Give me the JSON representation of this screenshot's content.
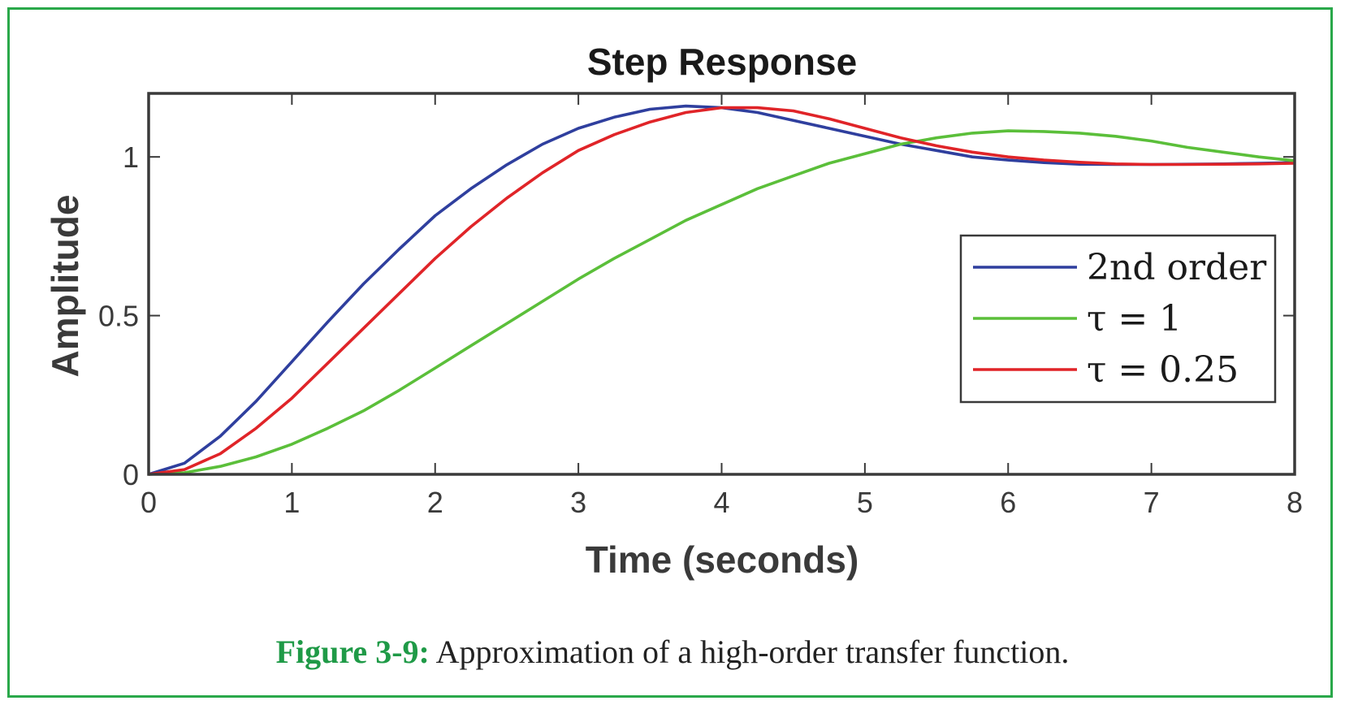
{
  "colors": {
    "frame": "#2aa84a",
    "axis": "#3a3a3a",
    "caption_label": "#1f9a47"
  },
  "caption": {
    "label": "Figure 3-9:",
    "text": " Approximation of a high-order transfer function."
  },
  "chart_data": {
    "type": "line",
    "title": "Step Response",
    "xlabel": "Time (seconds)",
    "ylabel": "Amplitude",
    "xlim": [
      0,
      8
    ],
    "ylim": [
      0,
      1.2
    ],
    "xticks": [
      0,
      1,
      2,
      3,
      4,
      5,
      6,
      7,
      8
    ],
    "xtick_labels": [
      "0",
      "1",
      "2",
      "3",
      "4",
      "5",
      "6",
      "7",
      "8"
    ],
    "yticks": [
      0,
      0.5,
      1
    ],
    "ytick_labels": [
      "0",
      "0.5",
      "1"
    ],
    "grid": false,
    "legend_position": "right",
    "x": [
      0,
      0.25,
      0.5,
      0.75,
      1,
      1.25,
      1.5,
      1.75,
      2,
      2.25,
      2.5,
      2.75,
      3,
      3.25,
      3.5,
      3.75,
      4,
      4.25,
      4.5,
      4.75,
      5,
      5.25,
      5.5,
      5.75,
      6,
      6.25,
      6.5,
      6.75,
      7,
      7.25,
      7.5,
      7.75,
      8
    ],
    "series": [
      {
        "name": "2nd order",
        "color": "#2f3f9e",
        "values": [
          0,
          0.035,
          0.12,
          0.23,
          0.355,
          0.48,
          0.6,
          0.71,
          0.815,
          0.9,
          0.975,
          1.04,
          1.09,
          1.125,
          1.15,
          1.16,
          1.155,
          1.14,
          1.115,
          1.09,
          1.065,
          1.04,
          1.02,
          1.0,
          0.99,
          0.982,
          0.977,
          0.976,
          0.976,
          0.977,
          0.978,
          0.98,
          0.982
        ]
      },
      {
        "name": "τ = 1",
        "color": "#5bbf3a",
        "values": [
          0,
          0.005,
          0.025,
          0.055,
          0.095,
          0.145,
          0.2,
          0.265,
          0.335,
          0.405,
          0.475,
          0.545,
          0.615,
          0.68,
          0.74,
          0.8,
          0.85,
          0.9,
          0.94,
          0.98,
          1.01,
          1.04,
          1.06,
          1.075,
          1.082,
          1.08,
          1.075,
          1.065,
          1.05,
          1.03,
          1.015,
          1.0,
          0.988
        ]
      },
      {
        "name": "τ = 0.25",
        "color": "#e02428",
        "values": [
          0,
          0.015,
          0.065,
          0.145,
          0.24,
          0.35,
          0.46,
          0.57,
          0.68,
          0.78,
          0.87,
          0.95,
          1.02,
          1.07,
          1.11,
          1.14,
          1.155,
          1.155,
          1.145,
          1.12,
          1.09,
          1.06,
          1.035,
          1.015,
          1.0,
          0.99,
          0.983,
          0.978,
          0.976,
          0.976,
          0.977,
          0.978,
          0.98
        ]
      }
    ]
  }
}
